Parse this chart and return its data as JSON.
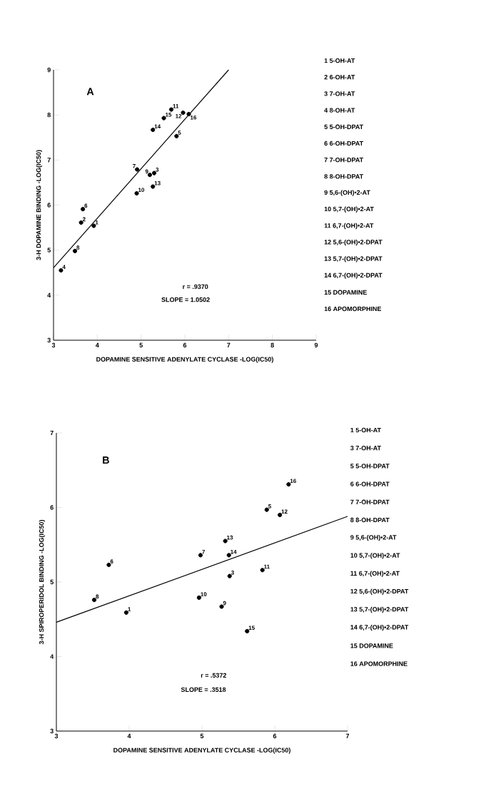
{
  "chart_data": [
    {
      "type": "scatter",
      "xlabel": "DOPAMINE SENSITIVE ADENYLATE CYCLASE -LOG(IC50)",
      "ylabel": "3-H DOPAMINE BINDING -LOG(IC50)",
      "xlim": [
        3,
        9
      ],
      "ylim": [
        3,
        9
      ],
      "xticks": [
        3,
        4,
        5,
        6,
        7,
        8,
        9
      ],
      "yticks": [
        3,
        4,
        5,
        6,
        7,
        8,
        9
      ],
      "grid": false,
      "legend": false,
      "series": [
        {
          "marker": "circle",
          "color": "#000000",
          "x": [
            3.92,
            3.63,
            5.3,
            3.17,
            5.81,
            3.67,
            4.91,
            3.49,
            5.2,
            4.9,
            5.69,
            5.96,
            5.27,
            5.27,
            5.52,
            6.09
          ],
          "values": [
            5.54,
            5.61,
            6.71,
            4.55,
            7.53,
            5.91,
            6.79,
            4.98,
            6.67,
            6.26,
            8.12,
            8.05,
            6.41,
            7.67,
            7.93,
            8.02
          ]
        },
        {
          "type": "line",
          "color": "#000000",
          "marker": "none",
          "line_style": "solid",
          "x": [
            3,
            7.0
          ],
          "values": [
            4.61,
            9.0
          ]
        }
      ],
      "annotations": [
        "A",
        "r = .9370",
        "SLOPE = 1.0502",
        "1 5-OH-AT",
        "2 6-OH-AT",
        "3 7-OH-AT",
        "4 8-OH-AT",
        "5 5-OH-DPAT",
        "6 6-OH-DPAT",
        "7 7-OH-DPAT",
        "8 8-OH-DPAT",
        "9 5,6-(OH)•2-AT",
        "10 5,7-(OH)•2-AT",
        "11 6,7-(OH)•2-AT",
        "12 5,6-(OH)•2-DPAT",
        "13 5,7-(OH)•2-DPAT",
        "14 6,7-(OH)•2-DPAT",
        "15 DOPAMINE",
        "16 APOMORPHINE",
        {
          "text": "1",
          "x": 3.92,
          "y": 5.54
        },
        {
          "text": "2",
          "x": 3.63,
          "y": 5.61
        },
        {
          "text": "3",
          "x": 5.3,
          "y": 6.71
        },
        {
          "text": "4",
          "x": 3.17,
          "y": 4.55
        },
        {
          "text": "5",
          "x": 5.81,
          "y": 7.53
        },
        {
          "text": "6",
          "x": 3.67,
          "y": 5.91
        },
        {
          "text": "7",
          "x": 4.91,
          "y": 6.79
        },
        {
          "text": "8",
          "x": 3.49,
          "y": 4.98
        },
        {
          "text": "9",
          "x": 5.2,
          "y": 6.67
        },
        {
          "text": "10",
          "x": 4.9,
          "y": 6.26
        },
        {
          "text": "11",
          "x": 5.69,
          "y": 8.12
        },
        {
          "text": "12",
          "x": 5.96,
          "y": 8.05
        },
        {
          "text": "13",
          "x": 5.27,
          "y": 6.41
        },
        {
          "text": "14",
          "x": 5.27,
          "y": 7.67
        },
        {
          "text": "15",
          "x": 5.52,
          "y": 7.93
        },
        {
          "text": "16",
          "x": 6.09,
          "y": 8.02
        }
      ]
    },
    {
      "type": "scatter",
      "xlabel": "DOPAMINE SENSITIVE ADENYLATE CYCLASE -LOG(IC50)",
      "ylabel": "3-H SPIROPERIDOL BINDING -LOG(IC50)",
      "xlim": [
        3,
        7
      ],
      "ylim": [
        3,
        7
      ],
      "xticks": [
        3,
        4,
        5,
        6,
        7
      ],
      "yticks": [
        3,
        4,
        5,
        6,
        7
      ],
      "grid": false,
      "legend": false,
      "series": [
        {
          "marker": "circle",
          "color": "#000000",
          "x": [
            3.96,
            5.38,
            5.89,
            3.72,
            4.98,
            3.52,
            5.27,
            4.96,
            5.83,
            6.07,
            5.32,
            5.37,
            5.62,
            6.19
          ],
          "values": [
            4.59,
            5.08,
            5.97,
            5.23,
            5.36,
            4.76,
            4.67,
            4.79,
            5.16,
            5.9,
            5.55,
            5.36,
            4.34,
            6.31
          ]
        },
        {
          "type": "line",
          "color": "#000000",
          "marker": "none",
          "line_style": "solid",
          "x": [
            3,
            7
          ],
          "values": [
            4.46,
            5.88
          ]
        }
      ],
      "annotations": [
        "B",
        "r = .5372",
        "SLOPE = .3518",
        "1 5-OH-AT",
        "3 7-OH-AT",
        "5 5-OH-DPAT",
        "6 6-OH-DPAT",
        "7 7-OH-DPAT",
        "8 8-OH-DPAT",
        "9 5,6-(OH)•2-AT",
        "10 5,7-(OH)•2-AT",
        "11 6,7-(OH)•2-AT",
        "12 5,6-(OH)•2-DPAT",
        "13 5,7-(OH)•2-DPAT",
        "14 6,7-(OH)•2-DPAT",
        "15 DOPAMINE",
        "16 APOMORPHINE",
        {
          "text": "1",
          "x": 3.96,
          "y": 4.59
        },
        {
          "text": "3",
          "x": 5.38,
          "y": 5.08
        },
        {
          "text": "5",
          "x": 5.89,
          "y": 5.97
        },
        {
          "text": "6",
          "x": 3.72,
          "y": 5.23
        },
        {
          "text": "7",
          "x": 4.98,
          "y": 5.36
        },
        {
          "text": "8",
          "x": 3.52,
          "y": 4.76
        },
        {
          "text": "9",
          "x": 5.27,
          "y": 4.67
        },
        {
          "text": "10",
          "x": 4.96,
          "y": 4.79
        },
        {
          "text": "11",
          "x": 5.83,
          "y": 5.16
        },
        {
          "text": "12",
          "x": 6.07,
          "y": 5.9
        },
        {
          "text": "13",
          "x": 5.32,
          "y": 5.55
        },
        {
          "text": "14",
          "x": 5.37,
          "y": 5.36
        },
        {
          "text": "15",
          "x": 5.62,
          "y": 4.34
        },
        {
          "text": "16",
          "x": 6.19,
          "y": 6.31
        }
      ]
    }
  ]
}
